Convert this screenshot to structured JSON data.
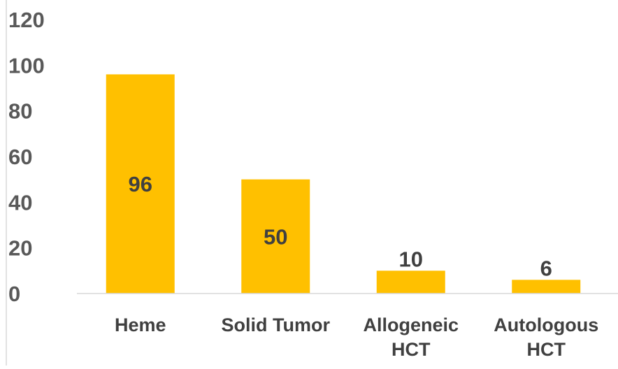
{
  "chart_data": {
    "type": "bar",
    "categories": [
      "Heme",
      "Solid Tumor",
      "Allogeneic HCT",
      "Autologous HCT"
    ],
    "category_lines": [
      [
        "Heme"
      ],
      [
        "Solid Tumor"
      ],
      [
        "Allogeneic",
        "HCT"
      ],
      [
        "Autologous",
        "HCT"
      ]
    ],
    "values": [
      96,
      50,
      10,
      6
    ],
    "data_labels": [
      "96",
      "50",
      "10",
      "6"
    ],
    "data_label_positions": [
      "inside",
      "inside",
      "outside",
      "outside"
    ],
    "title": "",
    "xlabel": "",
    "ylabel": "",
    "ylim": [
      0,
      120
    ],
    "yticks": [
      "0",
      "20",
      "40",
      "60",
      "80",
      "100",
      "120"
    ],
    "grid": false,
    "legend": "none",
    "colors": {
      "bar": "#FFC000",
      "axis": "#D9D9D9",
      "tick_text": "#595959",
      "label_text": "#404040"
    }
  }
}
